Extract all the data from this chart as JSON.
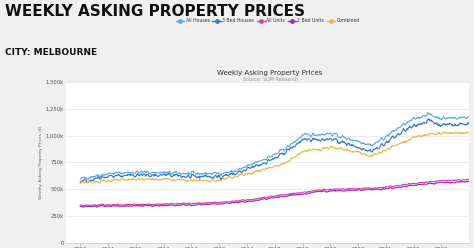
{
  "title_main": "WEEKLY ASKING PROPERTY PRICES",
  "subtitle_main": "CITY: MELBOURNE",
  "chart_title": "Weekly Asking Property Prices",
  "source": "Source: SQM Research",
  "legend": [
    "All Houses",
    "3 Bed Houses",
    "All Units",
    "2 Bed Units",
    "Combined"
  ],
  "colors": {
    "All Houses": "#5baee8",
    "3 Bed Houses": "#3a7cc4",
    "All Units": "#e040a0",
    "2 Bed Units": "#9b30b8",
    "Combined": "#e6b84a"
  },
  "ylim": [
    0,
    1500000
  ],
  "yticks": [
    0,
    250000,
    500000,
    750000,
    1000000,
    1250000,
    1500000
  ],
  "ytick_labels": [
    "0",
    "250k",
    "500k",
    "750k",
    "1,000k",
    "1,250k",
    "1,500k"
  ],
  "ylabel": "Weekly Asking Property Prices ($)",
  "background_color": "#f0f0f0",
  "plot_background": "#ffffff"
}
